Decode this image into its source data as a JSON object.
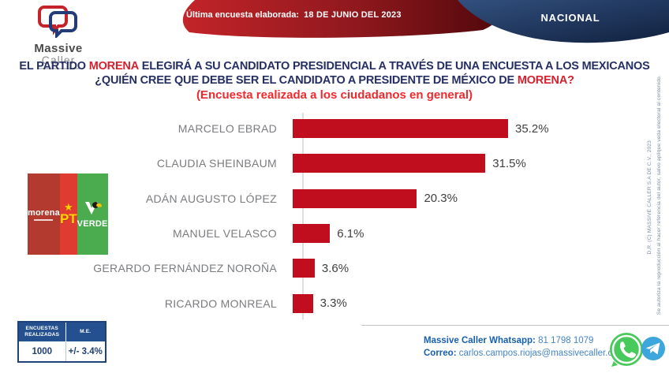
{
  "header": {
    "logo_word1": "Massive",
    "logo_word2": "Caller",
    "banner_label": "Última encuesta elaborada:",
    "banner_date": "18 DE JUNIO DEL 2023",
    "region_badge": "NACIONAL"
  },
  "title": {
    "line1_prefix": "EL PARTIDO ",
    "line1_highlight": "MORENA",
    "line1_suffix": " ELEGIRÁ A SU CANDIDATO PRESIDENCIAL A TRAVÉS DE UNA ENCUESTA A LOS MEXICANOS",
    "line2_prefix": "¿QUIÉN CREE QUE DEBE SER EL CANDIDATO A PRESIDENTE DE MÉXICO DE ",
    "line2_highlight": "MORENA?",
    "subtitle": "(Encuesta realizada a los ciudadanos en general)"
  },
  "chart_data": {
    "type": "bar",
    "orientation": "horizontal",
    "title": "¿Quién cree que debe ser el candidato a presidente de México de MORENA?",
    "subtitle": "Encuesta realizada a los ciudadanos en general",
    "categories": [
      "MARCELO EBRAD",
      "CLAUDIA SHEINBAUM",
      "ADÁN AUGUSTO LÓPEZ",
      "MANUEL VELASCO",
      "GERARDO FERNÁNDEZ NOROÑA",
      "RICARDO MONREAL"
    ],
    "values": [
      35.2,
      31.5,
      20.3,
      6.1,
      3.6,
      3.3
    ],
    "value_labels": [
      "35.2%",
      "31.5%",
      "20.3%",
      "6.1%",
      "3.6%",
      "3.3%"
    ],
    "bar_color": "#c00e1e",
    "xlim": [
      0,
      40
    ],
    "grid": false,
    "legend": false
  },
  "parties": {
    "morena_name": "morena",
    "pt_name": "PT",
    "pt_star": "★",
    "verde_name": "VERDE",
    "colors": {
      "morena": "#b23a2f",
      "pt": "#e03b31",
      "verde": "#4aac4e"
    }
  },
  "stats_table": {
    "header_col1": "ENCUESTAS REALIZADAS",
    "header_col2": "M.E.",
    "value_col1": "1000",
    "value_col2": "+/- 3.4%"
  },
  "footer": {
    "whatsapp_label": "Massive Caller Whatsapp:",
    "whatsapp_number": "81 1798 1079",
    "email_label": "Correo:",
    "email": "carlos.campos.riojas@massivecaller.com"
  },
  "legal": {
    "copyright": "D.R. (C) MASSIVE CALLER S.A DE C.V., 2023",
    "notice": "Se autoriza la reproducción al hacer referencia del autor, salvo aplique veda electoral al contenido."
  },
  "colors": {
    "title_navy": "#262f63",
    "highlight_red": "#d6212e",
    "subtitle_red": "#ee2a2e",
    "bar_red": "#c00e1e",
    "banner_red_start": "#c32429",
    "banner_red_end": "#51080b",
    "badge_blue_start": "#32507f",
    "badge_blue_end": "#11213f",
    "whatsapp_green": "#48c95c",
    "telegram_blue": "#3da6dd"
  }
}
